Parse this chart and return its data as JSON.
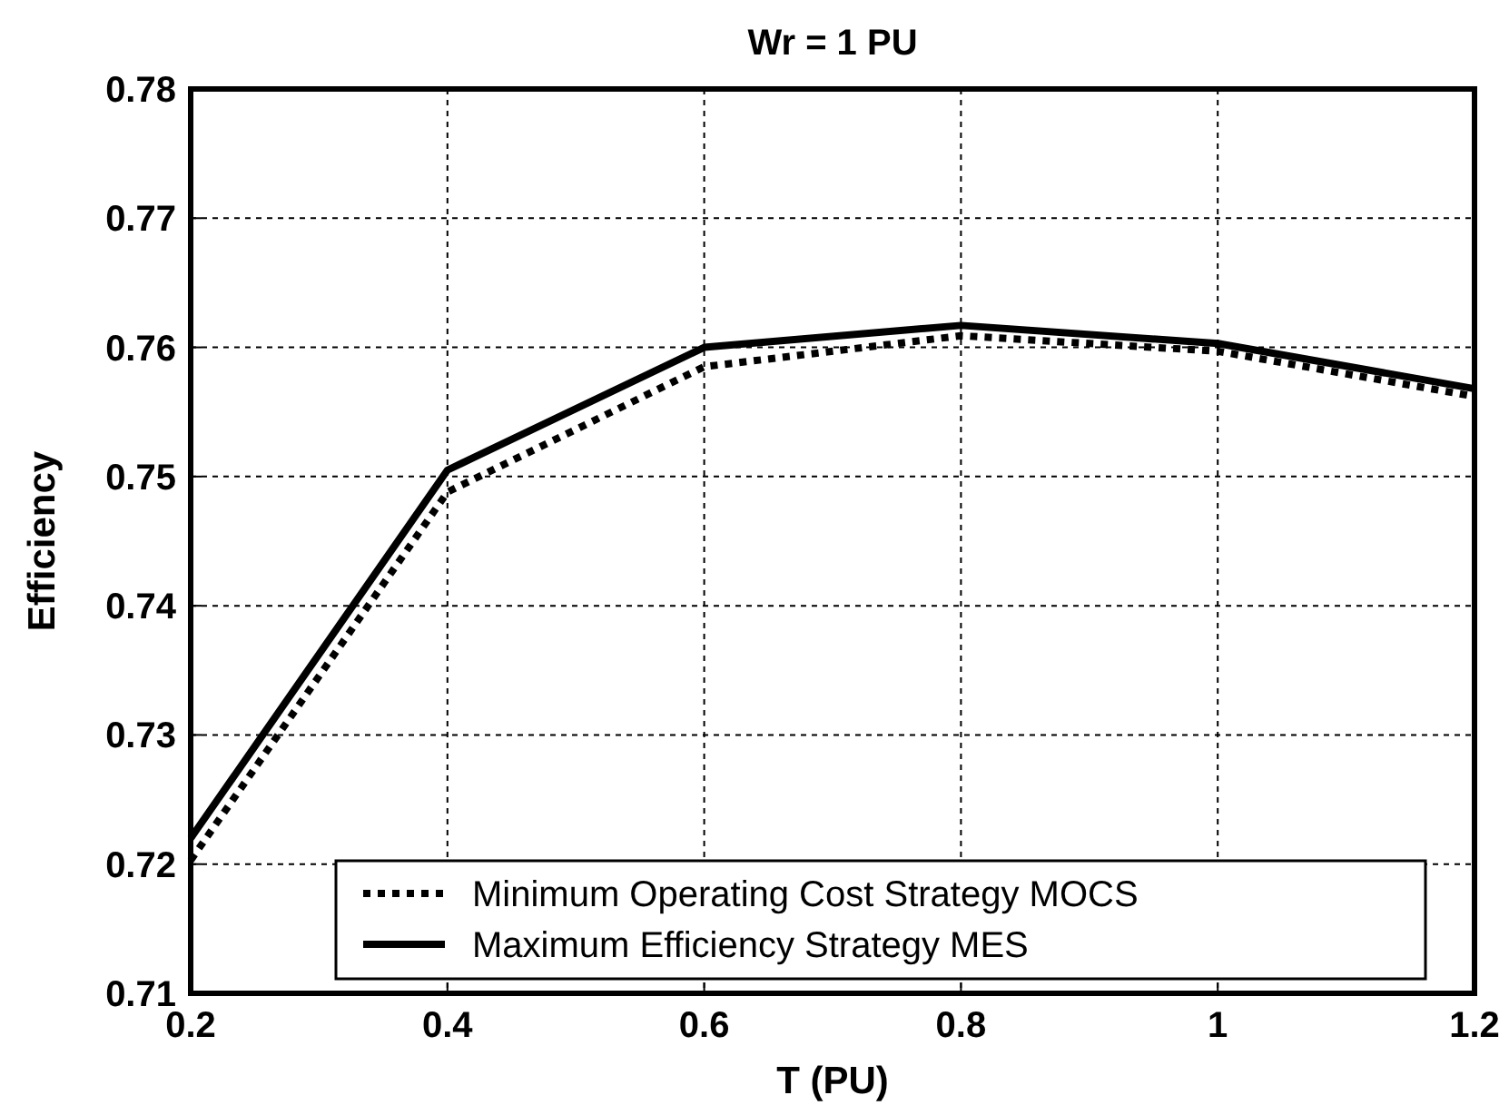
{
  "chart_data": {
    "type": "line",
    "title": "Wr = 1 PU",
    "xlabel": "T (PU)",
    "ylabel": "Efficiency",
    "x": [
      0.2,
      0.4,
      0.6,
      0.8,
      1,
      1.2
    ],
    "series": [
      {
        "name": "Minimum Operating Cost Strategy MOCS",
        "color": "#000000",
        "line_style": "dotted",
        "values": [
          0.7203,
          0.7488,
          0.7585,
          0.7609,
          0.7597,
          0.7562
        ]
      },
      {
        "name": "Maximum Efficiency Strategy MES",
        "color": "#000000",
        "line_style": "solid",
        "values": [
          0.722,
          0.7505,
          0.76,
          0.7617,
          0.7603,
          0.7568
        ]
      }
    ],
    "xlim": [
      0.2,
      1.2
    ],
    "xticks": [
      0.2,
      0.4,
      0.6,
      0.8,
      1,
      1.2
    ],
    "ylim": [
      0.71,
      0.78
    ],
    "yticks": [
      0.71,
      0.72,
      0.73,
      0.74,
      0.75,
      0.76,
      0.77,
      0.78
    ],
    "grid": true,
    "legend": "bottom",
    "marker": "none"
  }
}
